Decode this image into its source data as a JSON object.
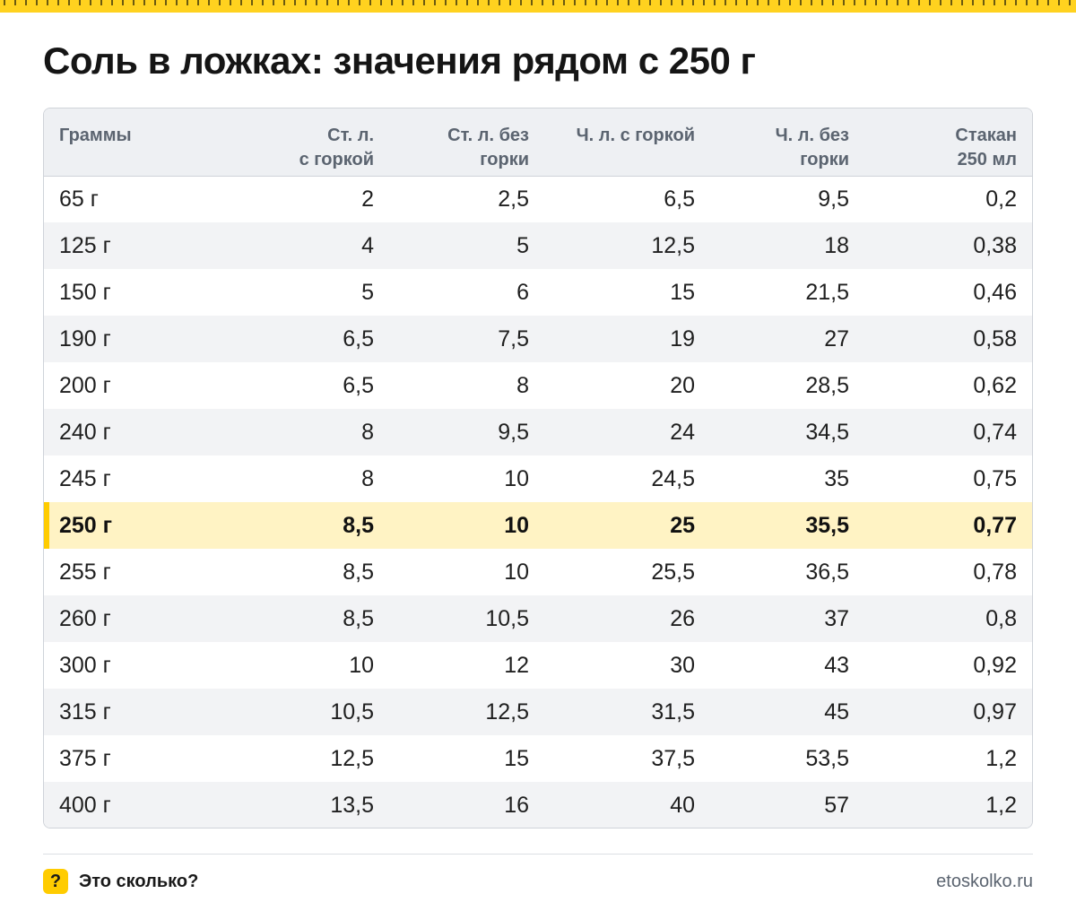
{
  "title": "Соль в ложках: значения рядом с 250 г",
  "table": {
    "headers": [
      [
        "Граммы"
      ],
      [
        "Ст. л.",
        "с горкой"
      ],
      [
        "Ст. л. без",
        "горки"
      ],
      [
        "Ч. л. с горкой"
      ],
      [
        "Ч. л. без",
        "горки"
      ],
      [
        "Стакан",
        "250 мл"
      ]
    ],
    "highlight_row": 7,
    "rows": [
      [
        "65 г",
        "2",
        "2,5",
        "6,5",
        "9,5",
        "0,2"
      ],
      [
        "125 г",
        "4",
        "5",
        "12,5",
        "18",
        "0,38"
      ],
      [
        "150 г",
        "5",
        "6",
        "15",
        "21,5",
        "0,46"
      ],
      [
        "190 г",
        "6,5",
        "7,5",
        "19",
        "27",
        "0,58"
      ],
      [
        "200 г",
        "6,5",
        "8",
        "20",
        "28,5",
        "0,62"
      ],
      [
        "240 г",
        "8",
        "9,5",
        "24",
        "34,5",
        "0,74"
      ],
      [
        "245 г",
        "8",
        "10",
        "24,5",
        "35",
        "0,75"
      ],
      [
        "250 г",
        "8,5",
        "10",
        "25",
        "35,5",
        "0,77"
      ],
      [
        "255 г",
        "8,5",
        "10",
        "25,5",
        "36,5",
        "0,78"
      ],
      [
        "260 г",
        "8,5",
        "10,5",
        "26",
        "37",
        "0,8"
      ],
      [
        "300 г",
        "10",
        "12",
        "30",
        "43",
        "0,92"
      ],
      [
        "315 г",
        "10,5",
        "12,5",
        "31,5",
        "45",
        "0,97"
      ],
      [
        "375 г",
        "12,5",
        "15",
        "37,5",
        "53,5",
        "1,2"
      ],
      [
        "400 г",
        "13,5",
        "16",
        "40",
        "57",
        "1,2"
      ]
    ]
  },
  "footer": {
    "badge": "?",
    "brand": "Это сколько?",
    "url": "etoskolko.ru"
  },
  "colors": {
    "accent": "#ffcc00",
    "highlight_bg": "#fff3c4",
    "header_bg": "#eef0f3",
    "stripe_bg": "#f2f3f5"
  }
}
